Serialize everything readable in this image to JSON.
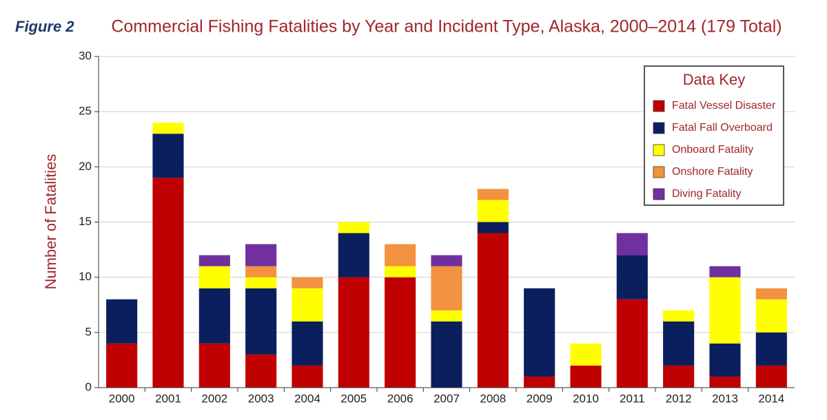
{
  "figure_label": "Figure 2",
  "chart_data": {
    "type": "stacked_bar",
    "title": "Commercial Fishing Fatalities by Year and Incident Type, Alaska, 2000–2014 (179 Total)",
    "y_label": "Number of Fatalities",
    "legend_title": "Data Key",
    "legend_position": "upper right",
    "grid": true,
    "categories": [
      "2000",
      "2001",
      "2002",
      "2003",
      "2004",
      "2005",
      "2006",
      "2007",
      "2008",
      "2009",
      "2010",
      "2011",
      "2012",
      "2013",
      "2014"
    ],
    "series": [
      {
        "name": "Fatal Vessel Disaster",
        "color": "#c00000",
        "values": [
          4,
          19,
          4,
          3,
          2,
          10,
          10,
          0,
          14,
          1,
          2,
          8,
          2,
          1,
          2
        ]
      },
      {
        "name": "Fatal Fall Overboard",
        "color": "#0b1f5e",
        "values": [
          4,
          4,
          5,
          6,
          4,
          4,
          0,
          6,
          1,
          8,
          0,
          4,
          4,
          3,
          3
        ]
      },
      {
        "name": "Onboard Fatality",
        "color": "#ffff00",
        "values": [
          0,
          1,
          2,
          1,
          3,
          1,
          1,
          1,
          2,
          0,
          2,
          0,
          1,
          6,
          3
        ]
      },
      {
        "name": "Onshore Fatality",
        "color": "#f39240",
        "values": [
          0,
          0,
          0,
          1,
          1,
          0,
          2,
          4,
          1,
          0,
          0,
          0,
          0,
          0,
          1
        ]
      },
      {
        "name": "Diving Fatality",
        "color": "#7030a0",
        "values": [
          0,
          0,
          1,
          2,
          0,
          0,
          0,
          1,
          0,
          0,
          0,
          2,
          0,
          1,
          0
        ]
      }
    ],
    "ylim": [
      0,
      30
    ],
    "yticks": [
      0,
      5,
      10,
      15,
      20,
      25,
      30
    ]
  }
}
